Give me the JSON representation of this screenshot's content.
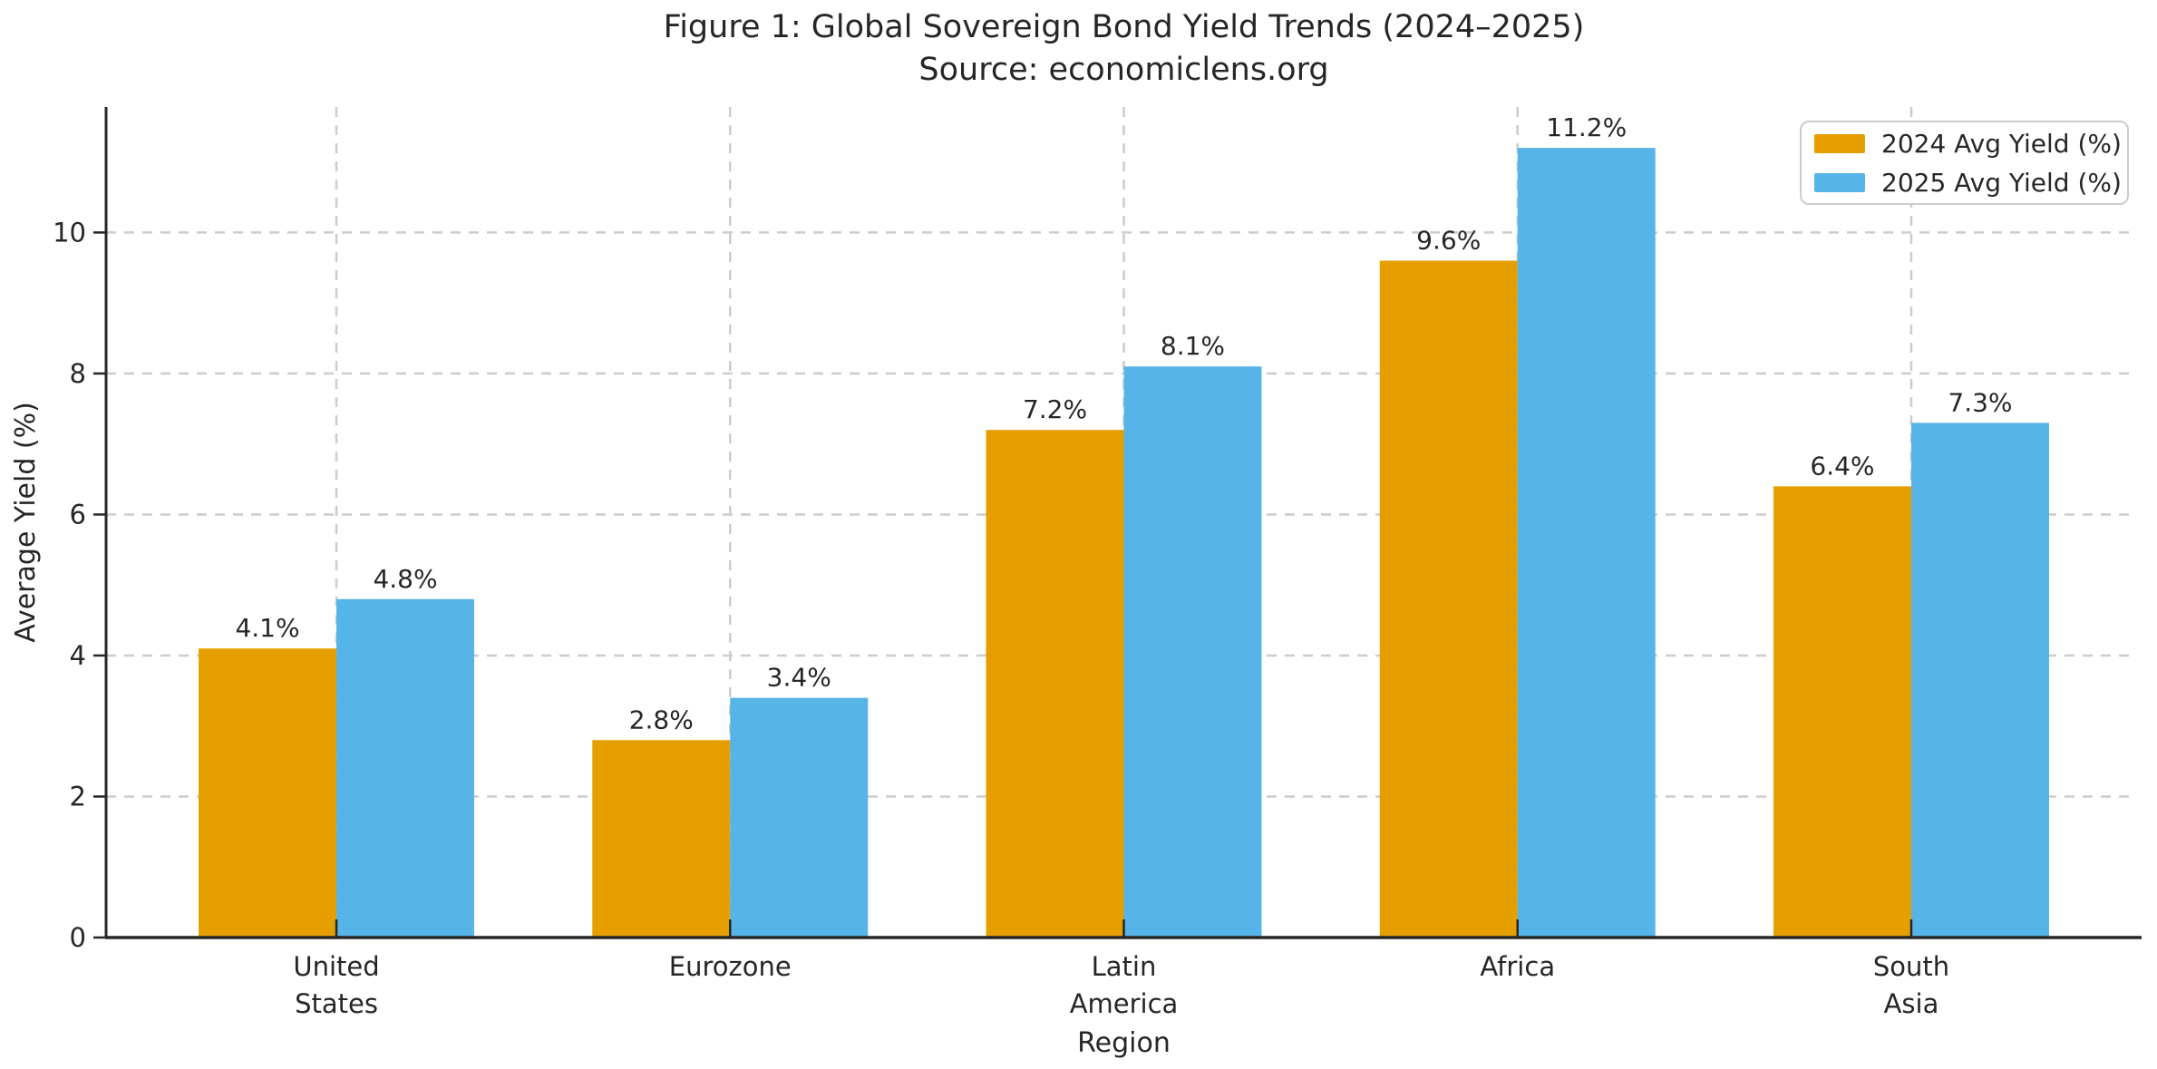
{
  "figure": {
    "background": "#ffffff"
  },
  "chart_data": {
    "type": "bar",
    "title": "Figure 1: Global Sovereign Bond Yield Trends (2024–2025)",
    "subtitle": "Source: economiclens.org",
    "categories": [
      "United\nStates",
      "Eurozone",
      "Latin\nAmerica",
      "Africa",
      "South\nAsia"
    ],
    "series": [
      {
        "name": "2024 Avg Yield (%)",
        "color": "#E69F00",
        "values": [
          4.1,
          2.8,
          7.2,
          9.6,
          6.4
        ],
        "value_labels": [
          "4.1%",
          "2.8%",
          "7.2%",
          "9.6%",
          "6.4%"
        ]
      },
      {
        "name": "2025 Avg Yield (%)",
        "color": "#56B4E9",
        "values": [
          4.8,
          3.4,
          8.1,
          11.2,
          7.3
        ],
        "value_labels": [
          "4.8%",
          "3.4%",
          "8.1%",
          "11.2%",
          "7.3%"
        ]
      }
    ],
    "xlabel": "Region",
    "ylabel": "Average Yield (%)",
    "yticks": [
      0,
      2,
      4,
      6,
      8,
      10
    ],
    "ylim": [
      0,
      11.78
    ],
    "bar_width_fraction": 0.35,
    "grid": {
      "axis": "both",
      "style": "dashed",
      "color": "#cccccc"
    },
    "legend": {
      "position": "upper-right",
      "entries": [
        "2024 Avg Yield (%)",
        "2025 Avg Yield (%)"
      ]
    },
    "colors": {
      "series_2024": "#E69F00",
      "series_2025": "#56B4E9",
      "text": "#262626",
      "spine": "#262626",
      "grid": "#cccccc"
    }
  }
}
